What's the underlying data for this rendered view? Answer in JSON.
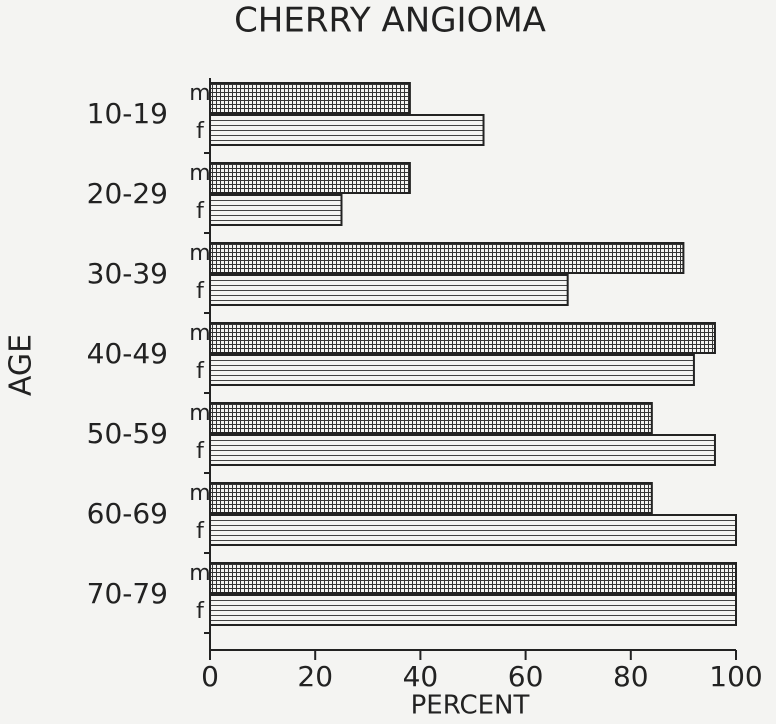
{
  "chart_data": {
    "type": "hbar",
    "title": "CHERRY ANGIOMA",
    "xlabel": "PERCENT",
    "ylabel": "AGE",
    "categories": [
      "10-19",
      "20-29",
      "30-39",
      "40-49",
      "50-59",
      "60-69",
      "70-79"
    ],
    "series": [
      {
        "name": "m",
        "pattern": "crosshatch",
        "color": "#222222",
        "values": [
          38,
          38,
          90,
          96,
          84,
          84,
          100
        ]
      },
      {
        "name": "f",
        "pattern": "horizontal-lines",
        "color": "#222222",
        "values": [
          52,
          25,
          68,
          92,
          96,
          100,
          100
        ]
      }
    ],
    "xlim": [
      0,
      100
    ],
    "xticks": [
      0,
      20,
      40,
      60,
      80,
      100
    ],
    "grid": false
  }
}
